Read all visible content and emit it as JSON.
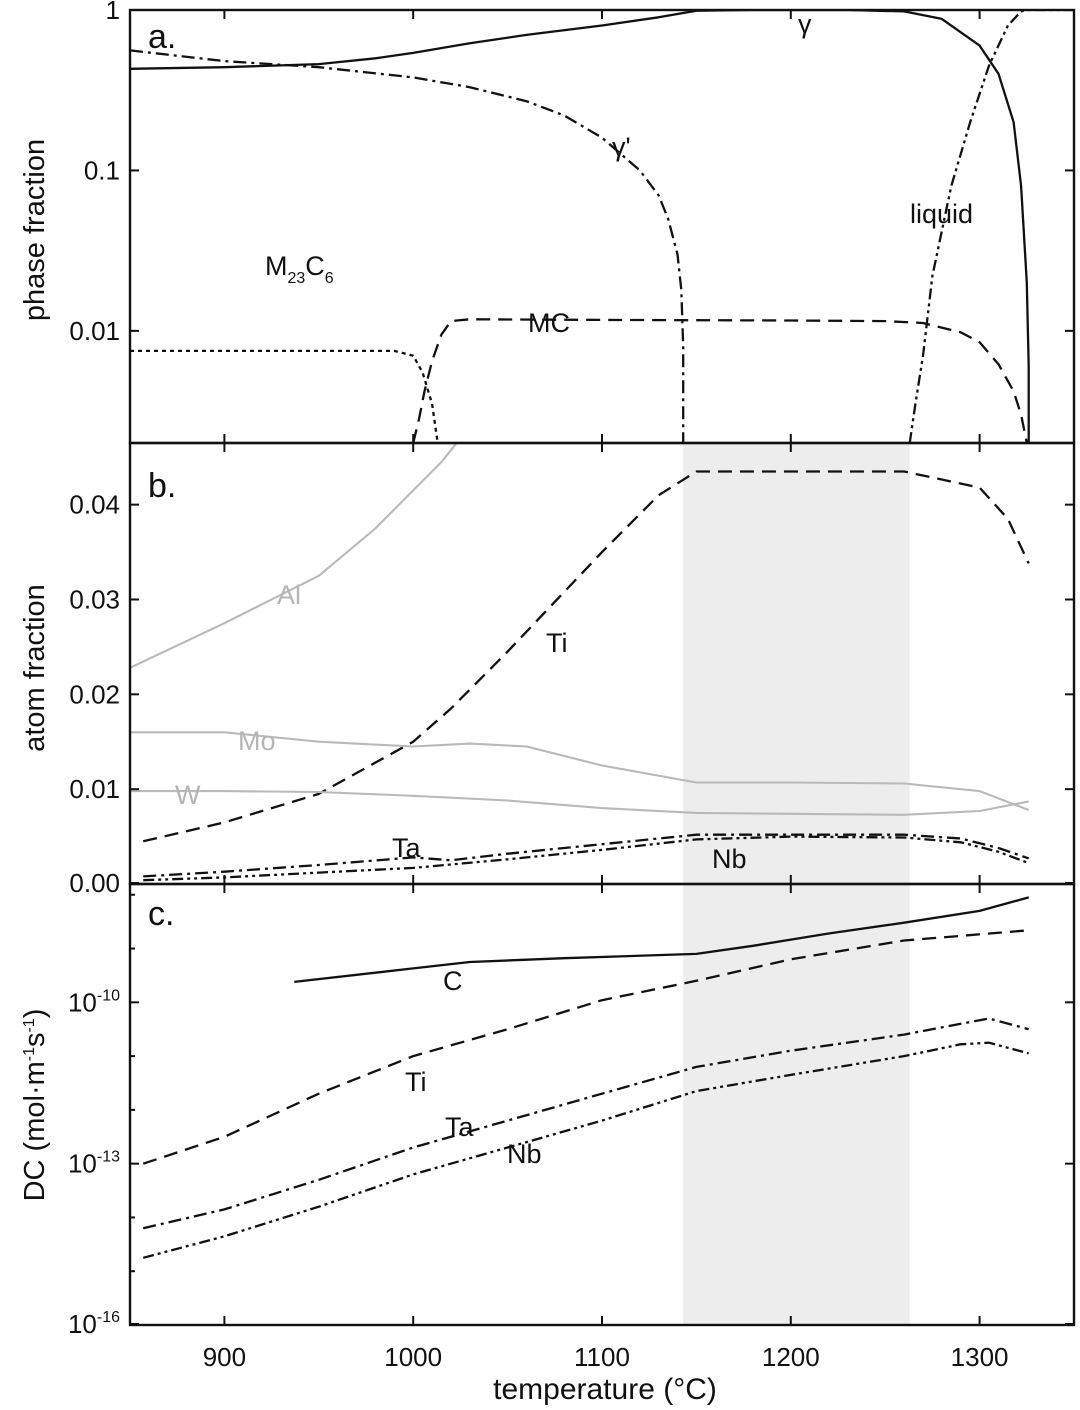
{
  "xlabel": "temperature (°C)",
  "x_ticks": [
    "900",
    "1000",
    "1100",
    "1200",
    "1300"
  ],
  "chart_data": [
    {
      "panel": "a.",
      "type": "line",
      "ylabel": "phase fraction",
      "yscale": "log",
      "xlim": [
        850,
        1350
      ],
      "ylim": [
        0.002,
        1
      ],
      "yticks": [
        "1",
        "0.1",
        "0.01"
      ],
      "series": [
        {
          "name": "γ",
          "dash": "solid",
          "x": [
            850,
            900,
            950,
            980,
            1000,
            1030,
            1060,
            1100,
            1130,
            1150,
            1180,
            1200,
            1230,
            1260,
            1280,
            1300,
            1310,
            1318,
            1322,
            1325,
            1326,
            1326
          ],
          "y": [
            0.43,
            0.44,
            0.46,
            0.5,
            0.54,
            0.62,
            0.7,
            0.8,
            0.9,
            0.99,
            1.0,
            1.0,
            1.0,
            0.98,
            0.88,
            0.6,
            0.4,
            0.2,
            0.08,
            0.02,
            0.006,
            0.002
          ]
        },
        {
          "name": "γ'",
          "dash": "dashdot",
          "x": [
            850,
            900,
            950,
            1000,
            1030,
            1060,
            1080,
            1100,
            1120,
            1130,
            1135,
            1140,
            1142,
            1143,
            1143
          ],
          "y": [
            0.56,
            0.48,
            0.44,
            0.38,
            0.33,
            0.27,
            0.22,
            0.16,
            0.1,
            0.07,
            0.05,
            0.03,
            0.018,
            0.008,
            0.002
          ]
        },
        {
          "name": "M23C6",
          "label_parts": [
            "M",
            "23",
            "C",
            "6"
          ],
          "dash": "dotted",
          "x": [
            850,
            900,
            950,
            990,
            1000,
            1005,
            1010,
            1013,
            1016,
            1018
          ],
          "y": [
            0.0075,
            0.0075,
            0.0075,
            0.0075,
            0.007,
            0.0055,
            0.0035,
            0.002,
            0.0012,
            0.002
          ]
        },
        {
          "name": "MC",
          "dash": "dashed",
          "x": [
            1000,
            1003,
            1006,
            1010,
            1015,
            1020,
            1030,
            1100,
            1200,
            1250,
            1270,
            1290,
            1300,
            1310,
            1318,
            1322,
            1325
          ],
          "y": [
            0.002,
            0.0028,
            0.0042,
            0.0065,
            0.0095,
            0.0115,
            0.0118,
            0.0117,
            0.0116,
            0.0115,
            0.0112,
            0.0098,
            0.0085,
            0.0062,
            0.0042,
            0.003,
            0.002
          ]
        },
        {
          "name": "liquid",
          "dash": "dashdotdot",
          "x": [
            1263,
            1266,
            1270,
            1275,
            1285,
            1295,
            1305,
            1315,
            1322,
            1325,
            1350
          ],
          "y": [
            0.002,
            0.0035,
            0.007,
            0.022,
            0.08,
            0.2,
            0.45,
            0.8,
            0.98,
            1.0,
            1.0
          ]
        }
      ]
    },
    {
      "panel": "b.",
      "type": "line",
      "ylabel": "atom fraction",
      "xlim": [
        850,
        1350
      ],
      "ylim": [
        0,
        0.0465
      ],
      "yticks": [
        "0.04",
        "0.03",
        "0.02",
        "0.01",
        "0.00"
      ],
      "series": [
        {
          "name": "Al",
          "color": "#b9b9b9",
          "dash": "solid",
          "x": [
            850,
            900,
            950,
            980,
            1000,
            1015,
            1025
          ],
          "y": [
            0.0228,
            0.0275,
            0.0325,
            0.0375,
            0.0415,
            0.0445,
            0.047
          ]
        },
        {
          "name": "Ti",
          "dash": "dashed",
          "x": [
            857,
            900,
            950,
            1000,
            1020,
            1050,
            1100,
            1130,
            1150,
            1200,
            1260,
            1300,
            1315,
            1326
          ],
          "y": [
            0.0045,
            0.0065,
            0.0095,
            0.015,
            0.0185,
            0.0245,
            0.035,
            0.041,
            0.0435,
            0.0435,
            0.0435,
            0.0418,
            0.0385,
            0.0338
          ]
        },
        {
          "name": "Mo",
          "color": "#b9b9b9",
          "dash": "solid",
          "x": [
            850,
            900,
            950,
            1000,
            1030,
            1060,
            1100,
            1150,
            1200,
            1260,
            1300,
            1326
          ],
          "y": [
            0.016,
            0.016,
            0.015,
            0.0145,
            0.0148,
            0.0145,
            0.0125,
            0.0107,
            0.0107,
            0.0106,
            0.0098,
            0.0078
          ]
        },
        {
          "name": "W",
          "color": "#b9b9b9",
          "dash": "solid",
          "x": [
            850,
            900,
            950,
            1000,
            1050,
            1100,
            1150,
            1200,
            1260,
            1300,
            1326
          ],
          "y": [
            0.0098,
            0.0098,
            0.0097,
            0.0093,
            0.0088,
            0.008,
            0.0075,
            0.0074,
            0.0073,
            0.0077,
            0.0087
          ]
        },
        {
          "name": "Ta",
          "dash": "dashdot",
          "x": [
            857,
            900,
            950,
            1000,
            1020,
            1050,
            1100,
            1150,
            1200,
            1260,
            1290,
            1310,
            1326
          ],
          "y": [
            0.0008,
            0.0013,
            0.002,
            0.0028,
            0.0025,
            0.0032,
            0.0042,
            0.0052,
            0.0052,
            0.0052,
            0.0048,
            0.0038,
            0.0027
          ]
        },
        {
          "name": "Nb",
          "dash": "dashdotdot",
          "x": [
            857,
            900,
            950,
            1000,
            1050,
            1100,
            1150,
            1200,
            1260,
            1290,
            1310,
            1326
          ],
          "y": [
            0.0004,
            0.0007,
            0.0012,
            0.0017,
            0.0026,
            0.0036,
            0.0047,
            0.005,
            0.0049,
            0.0044,
            0.0034,
            0.0022
          ]
        }
      ]
    },
    {
      "panel": "c.",
      "type": "line",
      "ylabel": "DC (mol·m-1s-1)",
      "ylabel_parts": [
        "DC (mol·m",
        "-1",
        "s",
        "-1",
        ")"
      ],
      "yscale": "log",
      "xlim": [
        850,
        1350
      ],
      "ylim_exp": [
        -16,
        -7.8
      ],
      "yticks": [
        {
          "base": "10",
          "exp": "-10"
        },
        {
          "base": "10",
          "exp": "-13"
        },
        {
          "base": "10",
          "exp": "-16"
        }
      ],
      "shaded_x": [
        1143,
        1263
      ],
      "series": [
        {
          "name": "C",
          "dash": "solid",
          "log10_y": [
            -9.62,
            -9.37,
            -9.25,
            -9.18,
            -9.1,
            -8.95,
            -8.72,
            -8.52,
            -8.3,
            -8.05
          ],
          "x": [
            937,
            1000,
            1030,
            1080,
            1150,
            1180,
            1220,
            1260,
            1300,
            1326
          ]
        },
        {
          "name": "Ti",
          "dash": "dashed",
          "log10_y": [
            -13.0,
            -12.5,
            -11.7,
            -11.0,
            -10.5,
            -9.96,
            -9.6,
            -9.2,
            -8.85,
            -8.66
          ],
          "x": [
            857,
            900,
            950,
            1000,
            1050,
            1100,
            1150,
            1200,
            1260,
            1326
          ]
        },
        {
          "name": "Ta",
          "dash": "dashdot",
          "log10_y": [
            -14.2,
            -13.85,
            -13.3,
            -12.7,
            -12.2,
            -11.7,
            -11.2,
            -10.9,
            -10.6,
            -10.4,
            -10.3,
            -10.5
          ],
          "x": [
            857,
            900,
            950,
            1000,
            1050,
            1100,
            1150,
            1200,
            1260,
            1290,
            1305,
            1326
          ]
        },
        {
          "name": "Nb",
          "dash": "dashdotdot",
          "log10_y": [
            -14.75,
            -14.35,
            -13.8,
            -13.2,
            -12.7,
            -12.2,
            -11.65,
            -11.35,
            -11.0,
            -10.78,
            -10.75,
            -10.95
          ],
          "x": [
            857,
            900,
            950,
            1000,
            1050,
            1100,
            1150,
            1200,
            1260,
            1290,
            1305,
            1326
          ]
        }
      ]
    }
  ]
}
